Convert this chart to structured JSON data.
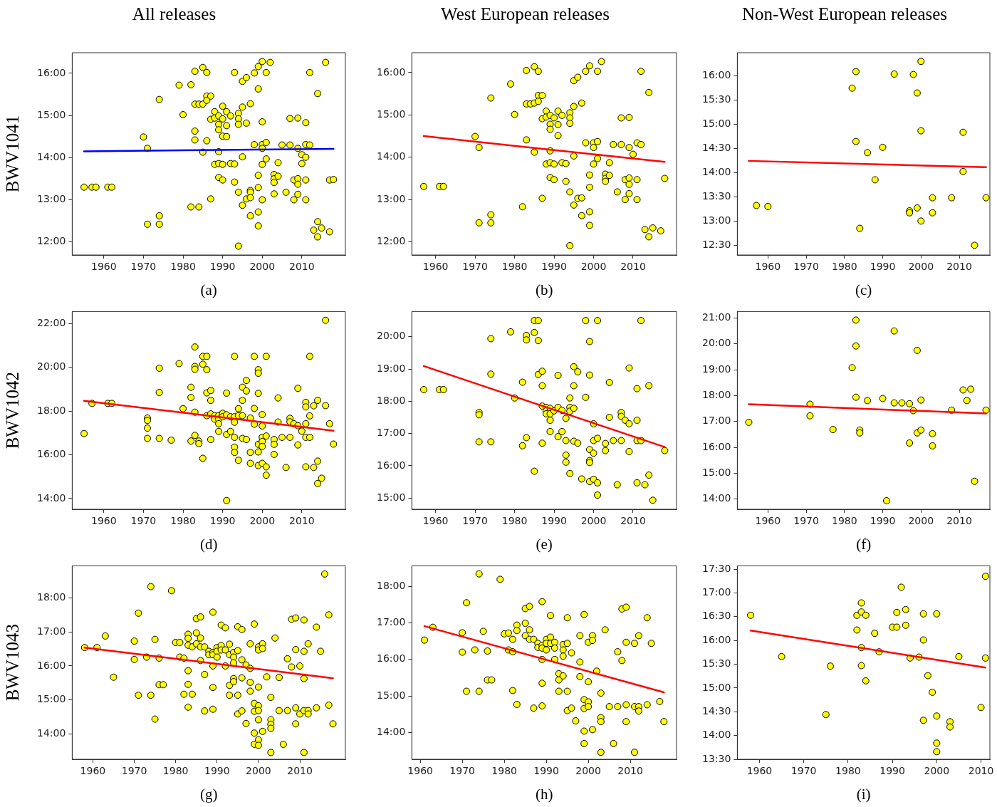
{
  "chart_data": [
    {
      "type": "scatter",
      "title": "All releases",
      "ylabel": "BWV1041",
      "xlabel": "(a)",
      "xlim": [
        1952,
        2021
      ],
      "ylim": [
        11.69,
        16.49
      ],
      "xticks": [
        1960,
        1970,
        1980,
        1990,
        2000,
        2010
      ],
      "yticks": [
        {
          "value": 12,
          "label": "12:00"
        },
        {
          "value": 13,
          "label": "13:00"
        },
        {
          "value": 14,
          "label": "14:00"
        },
        {
          "value": 15,
          "label": "15:00"
        },
        {
          "value": 16,
          "label": "16:00"
        }
      ],
      "series": [
        {
          "marker": "circle",
          "color": "#ffff00",
          "x": [
            1955,
            1957,
            1958,
            1961,
            1962,
            1970,
            1971,
            1971,
            1974,
            1974,
            1974,
            1979,
            1980,
            1982,
            1982,
            1983,
            1983,
            1983,
            1983,
            1984,
            1984,
            1985,
            1985,
            1985,
            1986,
            1986,
            1986,
            1986,
            1987,
            1987,
            1987,
            1988,
            1988,
            1988,
            1989,
            1989,
            1989,
            1989,
            1989,
            1989,
            1990,
            1990,
            1990,
            1990,
            1990,
            1991,
            1991,
            1991,
            1992,
            1992,
            1993,
            1993,
            1993,
            1994,
            1994,
            1994,
            1994,
            1994,
            1995,
            1995,
            1995,
            1995,
            1996,
            1996,
            1996,
            1997,
            1997,
            1997,
            1997,
            1997,
            1998,
            1998,
            1999,
            1999,
            1999,
            1999,
            1999,
            1999,
            2000,
            2000,
            2000,
            2000,
            2000,
            2000,
            2001,
            2001,
            2001,
            2002,
            2003,
            2003,
            2003,
            2003,
            2004,
            2004,
            2005,
            2006,
            2007,
            2007,
            2008,
            2008,
            2009,
            2009,
            2009,
            2009,
            2009,
            2010,
            2010,
            2011,
            2011,
            2011,
            2011,
            2011,
            2012,
            2012,
            2013,
            2014,
            2014,
            2014,
            2015,
            2016,
            2017,
            2017,
            2018
          ],
          "values": [
            13.3,
            13.3,
            13.3,
            13.3,
            13.3,
            14.49,
            14.22,
            12.42,
            15.38,
            12.62,
            12.42,
            15.72,
            15.02,
            15.73,
            12.83,
            16.05,
            15.27,
            14.63,
            14.42,
            15.27,
            12.83,
            16.14,
            15.27,
            14.13,
            16.02,
            15.46,
            15.36,
            14.4,
            15.46,
            14.91,
            13.02,
            15.09,
            14.94,
            13.84,
            14.99,
            14.79,
            14.66,
            14.14,
            13.86,
            13.53,
            15.22,
            14.92,
            14.51,
            13.84,
            13.47,
            15.09,
            14.76,
            14.5,
            14.99,
            13.86,
            16.02,
            13.85,
            13.42,
            15.05,
            14.92,
            14.79,
            13.18,
            11.9,
            15.81,
            15.2,
            14.02,
            12.87,
            15.9,
            14.82,
            13.02,
            15.28,
            13.22,
            13.18,
            13.05,
            12.62,
            16.01,
            14.31,
            16.16,
            15.63,
            13.58,
            13.29,
            12.71,
            12.38,
            16.28,
            14.85,
            14.31,
            14.22,
            13.84,
            13.0,
            16.02,
            14.36,
            13.97,
            16.26,
            13.6,
            13.5,
            13.41,
            13.14,
            13.88,
            13.56,
            14.3,
            13.18,
            14.93,
            14.3,
            13.47,
            13.0,
            14.94,
            14.22,
            13.5,
            13.37,
            13.13,
            14.07,
            13.86,
            14.83,
            14.31,
            14.01,
            13.47,
            13.0,
            16.02,
            14.3,
            12.28,
            15.52,
            12.48,
            12.12,
            12.33,
            16.26,
            13.47,
            12.24,
            13.48
          ]
        },
        {
          "type": "line",
          "color": "#0000ff",
          "x": [
            1955,
            2018
          ],
          "values": [
            14.15,
            14.21
          ]
        }
      ]
    },
    {
      "type": "scatter",
      "title": "West European releases",
      "xlabel": "(b)",
      "xlim": [
        1954,
        2021
      ],
      "ylim": [
        11.69,
        16.47
      ],
      "xticks": [
        1960,
        1970,
        1980,
        1990,
        2000,
        2010
      ],
      "yticks": [
        {
          "value": 12,
          "label": "12:00"
        },
        {
          "value": 13,
          "label": "13:00"
        },
        {
          "value": 14,
          "label": "14:00"
        },
        {
          "value": 15,
          "label": "15:00"
        },
        {
          "value": 16,
          "label": "16:00"
        }
      ],
      "series": [
        {
          "marker": "circle",
          "color": "#ffff00",
          "x": [
            1957,
            1961,
            1962,
            1970,
            1971,
            1971,
            1974,
            1974,
            1974,
            1979,
            1980,
            1982,
            1983,
            1983,
            1983,
            1984,
            1985,
            1985,
            1985,
            1986,
            1986,
            1986,
            1987,
            1987,
            1987,
            1988,
            1988,
            1988,
            1989,
            1989,
            1989,
            1989,
            1989,
            1989,
            1990,
            1990,
            1990,
            1991,
            1991,
            1991,
            1992,
            1992,
            1993,
            1993,
            1994,
            1994,
            1994,
            1994,
            1994,
            1995,
            1995,
            1995,
            1995,
            1996,
            1996,
            1997,
            1997,
            1997,
            1998,
            1998,
            1999,
            1999,
            1999,
            1999,
            1999,
            2000,
            2000,
            2000,
            2001,
            2001,
            2001,
            2002,
            2003,
            2003,
            2003,
            2004,
            2004,
            2005,
            2006,
            2007,
            2007,
            2008,
            2008,
            2009,
            2009,
            2009,
            2009,
            2009,
            2010,
            2011,
            2011,
            2011,
            2012,
            2012,
            2013,
            2014,
            2014,
            2015,
            2017,
            2018
          ],
          "values": [
            13.31,
            13.31,
            13.31,
            14.49,
            14.23,
            12.45,
            15.4,
            12.64,
            12.45,
            15.73,
            15.01,
            12.83,
            16.05,
            15.26,
            14.41,
            15.26,
            16.14,
            15.28,
            14.12,
            16.03,
            15.46,
            15.32,
            15.46,
            14.91,
            13.03,
            15.09,
            14.95,
            13.84,
            14.99,
            14.78,
            14.66,
            14.15,
            13.87,
            13.52,
            14.93,
            13.84,
            13.47,
            15.09,
            14.77,
            14.51,
            14.99,
            13.87,
            13.85,
            13.43,
            15.05,
            14.93,
            14.8,
            13.18,
            11.91,
            15.81,
            15.2,
            14.03,
            12.87,
            15.89,
            13.03,
            15.28,
            13.04,
            12.62,
            16.03,
            14.34,
            16.16,
            13.58,
            13.29,
            12.71,
            12.39,
            14.34,
            14.23,
            13.84,
            16.03,
            14.37,
            13.97,
            16.26,
            13.6,
            13.5,
            13.43,
            13.87,
            13.57,
            14.3,
            13.18,
            14.93,
            14.3,
            13.47,
            13.0,
            14.94,
            14.23,
            13.51,
            13.36,
            13.14,
            14.07,
            14.34,
            13.47,
            13.0,
            16.03,
            14.3,
            12.29,
            15.53,
            12.12,
            12.33,
            12.26,
            13.5
          ]
        },
        {
          "type": "line",
          "color": "#ff0000",
          "x": [
            1957,
            2018
          ],
          "values": [
            14.5,
            13.89
          ]
        }
      ]
    },
    {
      "type": "scatter",
      "title": "Non-West European releases",
      "xlabel": "(c)",
      "xlim": [
        1952,
        2018
      ],
      "ylim": [
        12.3,
        16.47
      ],
      "xticks": [
        1960,
        1970,
        1980,
        1990,
        2000,
        2010
      ],
      "yticks": [
        {
          "value": 12.5,
          "label": "12:30"
        },
        {
          "value": 13,
          "label": "13:00"
        },
        {
          "value": 13.5,
          "label": "13:30"
        },
        {
          "value": 14,
          "label": "14:00"
        },
        {
          "value": 14.5,
          "label": "14:30"
        },
        {
          "value": 15,
          "label": "15:00"
        },
        {
          "value": 15.5,
          "label": "15:30"
        },
        {
          "value": 16,
          "label": "16:00"
        }
      ],
      "series": [
        {
          "marker": "circle",
          "color": "#ffff00",
          "x": [
            1957,
            1960,
            1982,
            1983,
            1983,
            1984,
            1986,
            1988,
            1990,
            1993,
            1997,
            1997,
            1998,
            1999,
            1999,
            2000,
            2000,
            2000,
            2003,
            2003,
            2008,
            2011,
            2011,
            2014,
            2017
          ],
          "values": [
            13.32,
            13.3,
            15.74,
            16.08,
            14.64,
            12.85,
            14.41,
            13.85,
            14.52,
            16.03,
            13.21,
            13.17,
            16.02,
            15.64,
            13.27,
            16.29,
            14.86,
            13.0,
            13.48,
            13.17,
            13.48,
            14.83,
            14.02,
            12.5,
            13.48
          ]
        },
        {
          "type": "line",
          "color": "#ff0000",
          "x": [
            1955,
            2017
          ],
          "values": [
            14.24,
            14.11
          ]
        }
      ]
    },
    {
      "type": "scatter",
      "ylabel": "BWV1042",
      "xlabel": "(d)",
      "xlim": [
        1952,
        2021
      ],
      "ylim": [
        13.51,
        22.55
      ],
      "xticks": [
        1960,
        1970,
        1980,
        1990,
        2000,
        2010
      ],
      "yticks": [
        {
          "value": 14,
          "label": "14:00"
        },
        {
          "value": 16,
          "label": "16:00"
        },
        {
          "value": 18,
          "label": "18:00"
        },
        {
          "value": 20,
          "label": "20:00"
        },
        {
          "value": 22,
          "label": "22:00"
        }
      ],
      "series": [
        {
          "marker": "circle",
          "color": "#ffff00",
          "x": [
            1955,
            1957,
            1961,
            1962,
            1971,
            1971,
            1971,
            1971,
            1974,
            1974,
            1974,
            1977,
            1979,
            1980,
            1982,
            1982,
            1982,
            1983,
            1983,
            1983,
            1983,
            1983,
            1984,
            1984,
            1985,
            1985,
            1985,
            1986,
            1986,
            1986,
            1986,
            1987,
            1987,
            1987,
            1987,
            1988,
            1988,
            1989,
            1989,
            1989,
            1989,
            1990,
            1990,
            1991,
            1991,
            1991,
            1991,
            1992,
            1992,
            1993,
            1993,
            1993,
            1993,
            1993,
            1993,
            1994,
            1994,
            1994,
            1995,
            1995,
            1995,
            1995,
            1996,
            1996,
            1996,
            1997,
            1997,
            1997,
            1998,
            1998,
            1998,
            1999,
            1999,
            1999,
            1999,
            1999,
            1999,
            2000,
            2000,
            2000,
            2000,
            2000,
            2000,
            2001,
            2001,
            2001,
            2001,
            2003,
            2003,
            2003,
            2004,
            2004,
            2005,
            2006,
            2007,
            2007,
            2007,
            2008,
            2009,
            2009,
            2009,
            2010,
            2011,
            2011,
            2011,
            2011,
            2011,
            2012,
            2012,
            2012,
            2013,
            2013,
            2014,
            2014,
            2014,
            2015,
            2016,
            2016,
            2017,
            2018
          ],
          "values": [
            16.97,
            18.35,
            18.35,
            18.35,
            17.68,
            17.57,
            17.22,
            16.75,
            19.96,
            18.85,
            16.75,
            16.67,
            20.17,
            18.11,
            19.09,
            18.62,
            16.63,
            20.93,
            20.04,
            19.91,
            17.95,
            16.89,
            16.63,
            16.51,
            20.5,
            20.14,
            15.84,
            20.5,
            19.89,
            18.83,
            17.79,
            18.94,
            18.49,
            17.87,
            16.7,
            17.79,
            17.63,
            17.79,
            17.63,
            17.42,
            17.07,
            17.9,
            17.74,
            18.82,
            17.83,
            16.93,
            13.91,
            17.74,
            17.07,
            20.5,
            17.74,
            17.49,
            16.8,
            16.35,
            16.11,
            18.11,
            17.79,
            15.75,
            19.09,
            18.49,
            17.79,
            16.75,
            19.4,
            18.92,
            16.7,
            17.68,
            16.11,
            15.61,
            20.5,
            18.12,
            17.4,
            19.89,
            19.73,
            18.81,
            16.48,
            16.13,
            15.51,
            17.84,
            17.32,
            16.8,
            16.61,
            16.38,
            15.61,
            20.5,
            16.86,
            15.45,
            15.07,
            16.7,
            16.48,
            16.02,
            18.6,
            17.5,
            16.8,
            15.42,
            17.67,
            17.51,
            16.8,
            17.42,
            19.04,
            17.33,
            16.45,
            17.08,
            18.4,
            18.19,
            17.42,
            16.8,
            15.45,
            20.5,
            17.78,
            16.8,
            18.24,
            15.42,
            18.49,
            15.71,
            14.69,
            14.93,
            22.15,
            18.25,
            17.42,
            16.49
          ]
        },
        {
          "type": "line",
          "color": "#ff0000",
          "x": [
            1955,
            2018
          ],
          "values": [
            18.47,
            17.1
          ]
        }
      ]
    },
    {
      "type": "scatter",
      "xlabel": "(e)",
      "xlim": [
        1954,
        2021
      ],
      "ylim": [
        14.65,
        20.78
      ],
      "xticks": [
        1960,
        1970,
        1980,
        1990,
        2000,
        2010
      ],
      "yticks": [
        {
          "value": 15,
          "label": "15:00"
        },
        {
          "value": 16,
          "label": "16:00"
        },
        {
          "value": 17,
          "label": "17:00"
        },
        {
          "value": 18,
          "label": "18:00"
        },
        {
          "value": 19,
          "label": "19:00"
        },
        {
          "value": 20,
          "label": "20:00"
        }
      ],
      "series": [
        {
          "marker": "circle",
          "color": "#ffff00",
          "x": [
            1957,
            1961,
            1962,
            1971,
            1971,
            1971,
            1974,
            1974,
            1974,
            1979,
            1980,
            1982,
            1982,
            1983,
            1983,
            1983,
            1985,
            1985,
            1985,
            1986,
            1986,
            1986,
            1987,
            1987,
            1987,
            1987,
            1988,
            1988,
            1988,
            1989,
            1989,
            1989,
            1989,
            1990,
            1991,
            1991,
            1991,
            1992,
            1992,
            1993,
            1993,
            1993,
            1993,
            1994,
            1994,
            1994,
            1994,
            1995,
            1995,
            1995,
            1995,
            1996,
            1996,
            1997,
            1998,
            1998,
            1999,
            1999,
            1999,
            1999,
            1999,
            1999,
            2000,
            2000,
            2000,
            2000,
            2001,
            2001,
            2001,
            2001,
            2003,
            2003,
            2004,
            2004,
            2005,
            2006,
            2007,
            2007,
            2007,
            2008,
            2009,
            2009,
            2009,
            2011,
            2011,
            2011,
            2011,
            2012,
            2012,
            2013,
            2014,
            2014,
            2015,
            2018
          ],
          "values": [
            18.36,
            18.36,
            18.36,
            17.65,
            17.58,
            16.74,
            19.94,
            18.84,
            16.74,
            20.15,
            18.1,
            18.59,
            16.62,
            20.04,
            19.9,
            16.87,
            20.5,
            20.13,
            15.83,
            20.5,
            19.88,
            18.83,
            18.93,
            18.48,
            17.85,
            16.7,
            17.81,
            17.7,
            17.61,
            17.78,
            17.61,
            17.41,
            17.06,
            17.7,
            18.8,
            17.81,
            16.9,
            17.72,
            17.06,
            17.47,
            16.78,
            16.33,
            16.11,
            18.1,
            17.81,
            17.69,
            15.76,
            19.07,
            18.48,
            17.78,
            16.76,
            18.91,
            16.7,
            15.59,
            20.5,
            18.12,
            19.85,
            18.81,
            16.5,
            16.16,
            16.1,
            15.51,
            17.3,
            16.78,
            16.39,
            15.58,
            20.5,
            16.85,
            15.47,
            15.09,
            16.69,
            16.47,
            18.58,
            17.5,
            16.78,
            15.41,
            17.65,
            17.53,
            16.78,
            17.41,
            19.03,
            17.3,
            16.44,
            18.39,
            17.41,
            16.78,
            15.47,
            20.5,
            16.78,
            15.41,
            18.48,
            15.71,
            14.93,
            16.47
          ]
        },
        {
          "type": "line",
          "color": "#ff0000",
          "x": [
            1957,
            2018
          ],
          "values": [
            19.09,
            16.58
          ]
        }
      ]
    },
    {
      "type": "scatter",
      "xlabel": "(f)",
      "xlim": [
        1952,
        2018
      ],
      "ylim": [
        13.61,
        21.25
      ],
      "xticks": [
        1960,
        1970,
        1980,
        1990,
        2000,
        2010
      ],
      "yticks": [
        {
          "value": 14,
          "label": "14:00"
        },
        {
          "value": 15,
          "label": "15:00"
        },
        {
          "value": 16,
          "label": "16:00"
        },
        {
          "value": 17,
          "label": "17:00"
        },
        {
          "value": 18,
          "label": "18:00"
        },
        {
          "value": 19,
          "label": "19:00"
        },
        {
          "value": 20,
          "label": "20:00"
        },
        {
          "value": 21,
          "label": "21:00"
        }
      ],
      "series": [
        {
          "marker": "circle",
          "color": "#ffff00",
          "x": [
            1955,
            1971,
            1971,
            1977,
            1982,
            1983,
            1983,
            1983,
            1984,
            1984,
            1986,
            1990,
            1991,
            1993,
            1993,
            1995,
            1997,
            1997,
            1998,
            1999,
            1999,
            2000,
            2000,
            2003,
            2003,
            2008,
            2011,
            2012,
            2013,
            2014,
            2017
          ],
          "values": [
            16.97,
            17.67,
            17.22,
            16.69,
            19.08,
            20.92,
            19.92,
            17.94,
            16.67,
            16.56,
            17.81,
            17.89,
            13.94,
            20.5,
            17.72,
            17.72,
            17.69,
            16.17,
            17.42,
            19.75,
            16.56,
            17.83,
            16.67,
            16.53,
            16.06,
            17.44,
            18.22,
            17.81,
            18.25,
            14.69,
            17.44
          ]
        },
        {
          "type": "line",
          "color": "#ff0000",
          "x": [
            1955,
            2017
          ],
          "values": [
            17.67,
            17.31
          ]
        }
      ]
    },
    {
      "type": "scatter",
      "ylabel": "BWV1043",
      "xlabel": "(g)",
      "xlim": [
        1955,
        2021
      ],
      "ylim": [
        13.26,
        18.94
      ],
      "xticks": [
        1960,
        1970,
        1980,
        1990,
        2000,
        2010
      ],
      "yticks": [
        {
          "value": 14,
          "label": "14:00"
        },
        {
          "value": 15,
          "label": "15:00"
        },
        {
          "value": 16,
          "label": "16:00"
        },
        {
          "value": 17,
          "label": "17:00"
        },
        {
          "value": 18,
          "label": "18:00"
        }
      ],
      "series": [
        {
          "marker": "circle",
          "color": "#ffff00",
          "x": [
            1958,
            1961,
            1963,
            1965,
            1970,
            1970,
            1971,
            1971,
            1973,
            1974,
            1974,
            1975,
            1975,
            1976,
            1976,
            1977,
            1979,
            1980,
            1981,
            1981,
            1982,
            1982,
            1983,
            1983,
            1983,
            1983,
            1983,
            1983,
            1984,
            1984,
            1985,
            1985,
            1985,
            1986,
            1986,
            1986,
            1986,
            1987,
            1987,
            1987,
            1988,
            1988,
            1989,
            1989,
            1989,
            1989,
            1989,
            1989,
            1990,
            1990,
            1990,
            1991,
            1991,
            1991,
            1992,
            1992,
            1992,
            1993,
            1993,
            1993,
            1993,
            1994,
            1994,
            1994,
            1994,
            1994,
            1995,
            1995,
            1995,
            1995,
            1996,
            1996,
            1996,
            1996,
            1997,
            1997,
            1998,
            1998,
            1998,
            1998,
            1999,
            1999,
            1999,
            1999,
            1999,
            2000,
            2000,
            2000,
            2000,
            2000,
            2000,
            2000,
            2000,
            2001,
            2001,
            2001,
            2002,
            2003,
            2003,
            2003,
            2003,
            2003,
            2004,
            2005,
            2005,
            2006,
            2007,
            2007,
            2008,
            2008,
            2009,
            2009,
            2009,
            2009,
            2010,
            2010,
            2011,
            2011,
            2011,
            2011,
            2011,
            2012,
            2012,
            2012,
            2014,
            2014,
            2015,
            2016,
            2017,
            2017,
            2018
          ],
          "values": [
            16.54,
            16.54,
            16.88,
            15.67,
            16.19,
            16.73,
            17.55,
            15.14,
            16.26,
            18.33,
            15.14,
            16.78,
            14.44,
            16.23,
            15.45,
            15.45,
            18.21,
            16.69,
            16.69,
            16.26,
            16.23,
            15.17,
            16.93,
            16.81,
            16.61,
            15.86,
            15.46,
            14.79,
            16.56,
            15.17,
            17.39,
            16.97,
            16.65,
            17.44,
            16.82,
            16.56,
            16.16,
            16.56,
            15.75,
            14.68,
            16.43,
            16.33,
            17.58,
            16.4,
            16.33,
            16.0,
            15.37,
            14.73,
            16.54,
            16.43,
            16.26,
            17.2,
            16.6,
            16.47,
            17.12,
            16.47,
            16.0,
            16.64,
            16.33,
            15.43,
            15.14,
            16.4,
            16.26,
            16.09,
            15.63,
            15.54,
            17.15,
            16.45,
            15.14,
            14.59,
            17.07,
            16.18,
            15.65,
            14.68,
            16.03,
            14.31,
            16.65,
            15.93,
            15.52,
            15.26,
            17.23,
            14.9,
            14.67,
            14.03,
            13.7,
            16.56,
            16.47,
            15.38,
            14.83,
            14.69,
            14.42,
            13.83,
            13.67,
            16.65,
            16.51,
            14.08,
            15.68,
            15.08,
            14.42,
            14.29,
            14.17,
            13.46,
            16.82,
            15.66,
            14.69,
            13.7,
            16.21,
            14.69,
            15.97,
            17.37,
            17.41,
            16.48,
            14.77,
            14.3,
            16.0,
            14.59,
            17.35,
            16.43,
            15.63,
            14.69,
            13.46,
            16.65,
            14.69,
            14.59,
            17.14,
            14.77,
            16.43,
            18.7,
            17.5,
            14.85,
            14.3
          ]
        },
        {
          "type": "line",
          "color": "#ff0000",
          "x": [
            1958,
            2018
          ],
          "values": [
            16.54,
            15.64
          ]
        }
      ]
    },
    {
      "type": "scatter",
      "xlabel": "(h)",
      "xlim": [
        1958,
        2021
      ],
      "ylim": [
        13.27,
        18.56
      ],
      "xticks": [
        1960,
        1970,
        1980,
        1990,
        2000,
        2010
      ],
      "yticks": [
        {
          "value": 14,
          "label": "14:00"
        },
        {
          "value": 15,
          "label": "15:00"
        },
        {
          "value": 16,
          "label": "16:00"
        },
        {
          "value": 17,
          "label": "17:00"
        },
        {
          "value": 18,
          "label": "18:00"
        }
      ],
      "series": [
        {
          "marker": "circle",
          "color": "#ffff00",
          "x": [
            1961,
            1963,
            1970,
            1970,
            1971,
            1971,
            1973,
            1974,
            1974,
            1975,
            1976,
            1976,
            1977,
            1979,
            1980,
            1981,
            1981,
            1982,
            1982,
            1982,
            1983,
            1983,
            1983,
            1985,
            1985,
            1985,
            1986,
            1986,
            1986,
            1987,
            1987,
            1988,
            1988,
            1989,
            1989,
            1989,
            1989,
            1989,
            1989,
            1990,
            1990,
            1990,
            1991,
            1991,
            1991,
            1992,
            1992,
            1992,
            1993,
            1993,
            1993,
            1994,
            1994,
            1994,
            1994,
            1995,
            1995,
            1995,
            1995,
            1996,
            1996,
            1997,
            1998,
            1998,
            1998,
            1999,
            1999,
            1999,
            1999,
            1999,
            2000,
            2000,
            2000,
            2000,
            2001,
            2001,
            2001,
            2002,
            2003,
            2003,
            2003,
            2003,
            2004,
            2005,
            2006,
            2007,
            2007,
            2008,
            2008,
            2009,
            2009,
            2009,
            2009,
            2011,
            2011,
            2011,
            2012,
            2012,
            2012,
            2014,
            2014,
            2015,
            2017,
            2018
          ],
          "values": [
            16.53,
            16.88,
            16.73,
            16.2,
            17.55,
            15.13,
            16.26,
            18.34,
            15.13,
            16.77,
            16.23,
            15.44,
            15.44,
            18.19,
            16.7,
            16.72,
            16.26,
            16.55,
            16.21,
            15.15,
            16.94,
            16.79,
            14.77,
            17.39,
            16.99,
            16.65,
            17.45,
            16.81,
            16.55,
            16.55,
            14.67,
            16.44,
            16.33,
            17.58,
            16.39,
            16.31,
            16.0,
            15.35,
            14.73,
            16.55,
            16.44,
            16.26,
            17.2,
            16.61,
            16.44,
            16.47,
            16.31,
            16.0,
            15.61,
            15.44,
            15.13,
            16.41,
            16.26,
            16.09,
            15.55,
            17.14,
            16.44,
            15.13,
            14.6,
            16.18,
            14.67,
            14.32,
            16.65,
            15.93,
            15.53,
            17.23,
            14.9,
            14.66,
            14.04,
            13.7,
            16.47,
            15.39,
            14.84,
            14.71,
            16.65,
            16.52,
            14.08,
            15.68,
            15.08,
            14.41,
            14.3,
            13.46,
            16.81,
            14.71,
            13.7,
            16.21,
            14.71,
            17.38,
            15.97,
            17.43,
            16.47,
            14.76,
            14.3,
            16.44,
            14.71,
            13.46,
            16.65,
            14.71,
            14.59,
            17.14,
            14.76,
            16.44,
            14.85,
            14.3
          ]
        },
        {
          "type": "line",
          "color": "#ff0000",
          "x": [
            1961,
            2018
          ],
          "values": [
            16.91,
            15.1
          ]
        }
      ]
    },
    {
      "type": "scatter",
      "xlabel": "(i)",
      "xlim": [
        1955,
        2012
      ],
      "ylim": [
        13.5,
        17.57
      ],
      "xticks": [
        1960,
        1970,
        1980,
        1990,
        2000,
        2010
      ],
      "yticks": [
        {
          "value": 13.5,
          "label": "13:30"
        },
        {
          "value": 14,
          "label": "14:00"
        },
        {
          "value": 14.5,
          "label": "14:30"
        },
        {
          "value": 15,
          "label": "15:00"
        },
        {
          "value": 15.5,
          "label": "15:30"
        },
        {
          "value": 16,
          "label": "16:00"
        },
        {
          "value": 16.5,
          "label": "16:30"
        },
        {
          "value": 17,
          "label": "17:00"
        },
        {
          "value": 17.5,
          "label": "17:30"
        }
      ],
      "series": [
        {
          "marker": "circle",
          "color": "#ffff00",
          "x": [
            1958,
            1965,
            1975,
            1976,
            1982,
            1982,
            1983,
            1983,
            1983,
            1983,
            1984,
            1984,
            1986,
            1987,
            1990,
            1991,
            1991,
            1992,
            1993,
            1993,
            1994,
            1996,
            1997,
            1997,
            1997,
            1998,
            1999,
            2000,
            2000,
            2000,
            2000,
            2003,
            2003,
            2005,
            2010,
            2011,
            2011
          ],
          "values": [
            16.53,
            15.66,
            14.44,
            15.46,
            16.53,
            16.22,
            16.79,
            16.6,
            15.85,
            15.47,
            16.53,
            15.15,
            16.15,
            15.76,
            16.28,
            16.59,
            16.28,
            17.12,
            16.65,
            16.32,
            15.63,
            15.65,
            16.56,
            16.01,
            14.32,
            15.26,
            14.91,
            16.56,
            14.41,
            13.84,
            13.66,
            14.29,
            14.18,
            15.66,
            14.59,
            17.35,
            15.63
          ]
        },
        {
          "type": "line",
          "color": "#ff0000",
          "x": [
            1958,
            2011
          ],
          "values": [
            16.21,
            15.43
          ]
        }
      ]
    }
  ]
}
